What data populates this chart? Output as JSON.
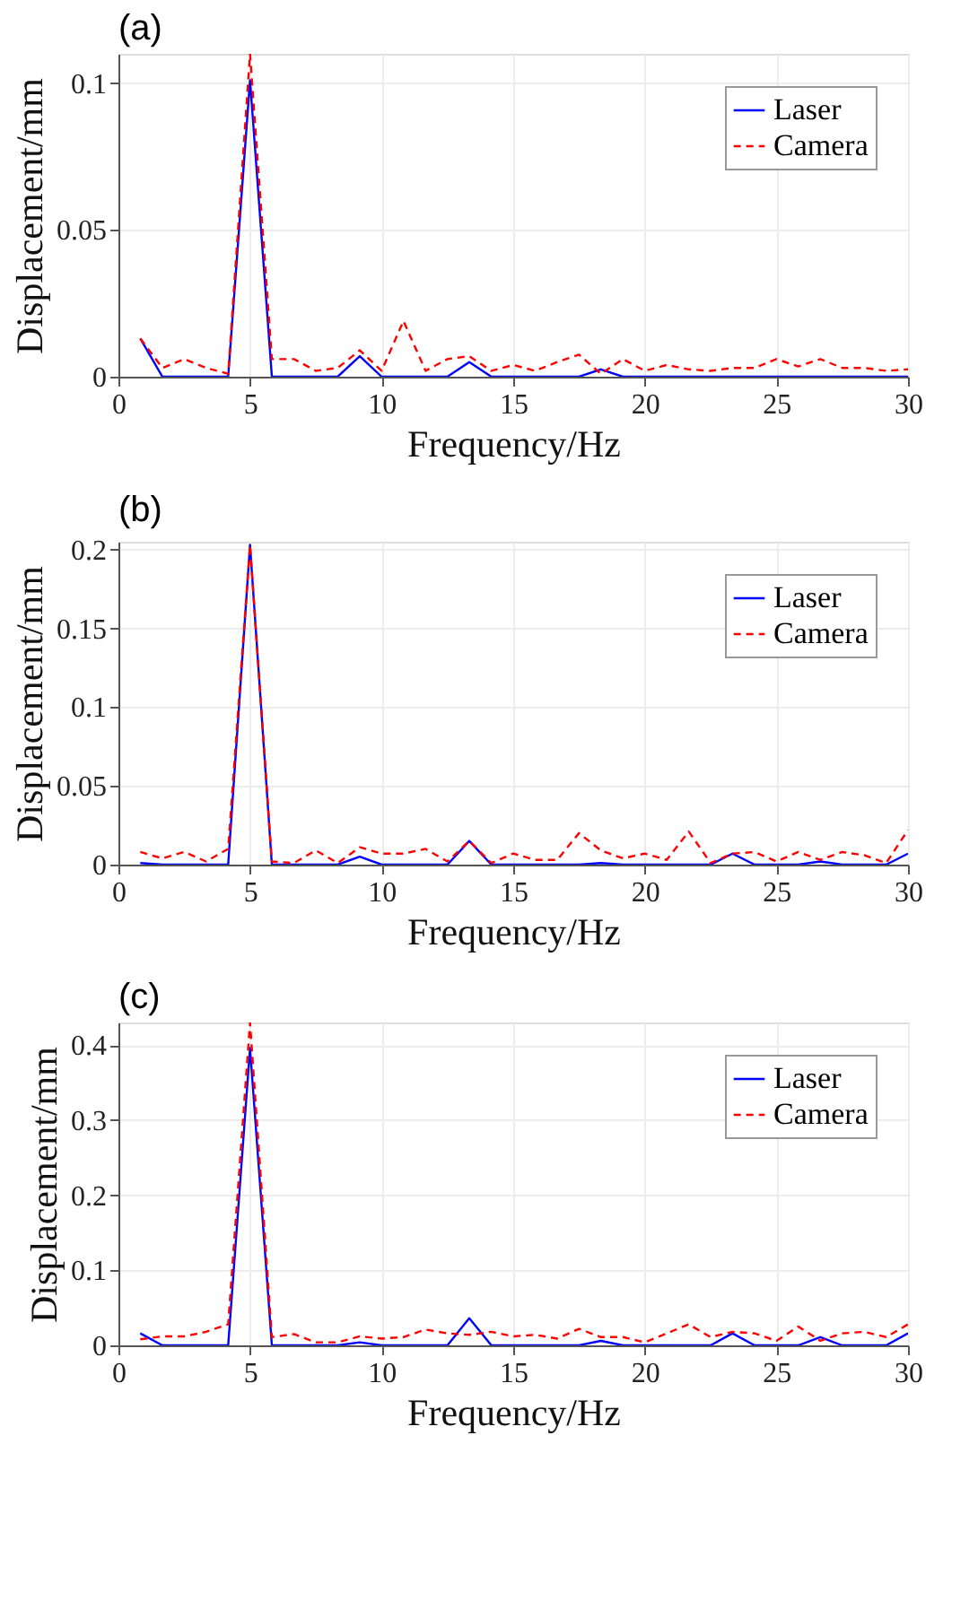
{
  "chart_data": [
    {
      "type": "line",
      "title": "(a)",
      "xlabel": "Frequency/Hz",
      "ylabel": "Displacement/mm",
      "x": [
        0.83,
        1.67,
        2.5,
        3.33,
        4.17,
        5,
        5.83,
        6.67,
        7.5,
        8.33,
        9.17,
        10,
        10.83,
        11.67,
        12.5,
        13.33,
        14.17,
        15,
        15.83,
        16.67,
        17.5,
        18.33,
        19.17,
        20,
        20.83,
        21.67,
        22.5,
        23.33,
        24.17,
        25,
        25.83,
        26.67,
        27.5,
        28.33,
        29.17,
        30
      ],
      "xlim": [
        0,
        30
      ],
      "xticks": [
        0,
        5,
        10,
        15,
        20,
        25,
        30
      ],
      "ylim": [
        0,
        0.11
      ],
      "yticks": [
        0,
        0.05,
        0.1
      ],
      "grid": true,
      "legend": "top right",
      "series": [
        {
          "name": "Laser",
          "color": "#0000ff",
          "line_style": "solid",
          "values": [
            0.013,
            0,
            0,
            0,
            0,
            0.101,
            0,
            0,
            0,
            0,
            0.007,
            0,
            0,
            0,
            0,
            0.005,
            0,
            0,
            0,
            0,
            0,
            0.0025,
            0,
            0,
            0,
            0,
            0,
            0,
            0,
            0,
            0,
            0,
            0,
            0,
            0,
            0
          ]
        },
        {
          "name": "Camera",
          "color": "#ff0000",
          "line_style": "dashed",
          "values": [
            0.013,
            0.003,
            0.006,
            0.003,
            0.001,
            0.11,
            0.006,
            0.006,
            0.002,
            0.003,
            0.009,
            0.002,
            0.019,
            0.002,
            0.006,
            0.007,
            0.002,
            0.004,
            0.002,
            0.005,
            0.0075,
            0.001,
            0.006,
            0.002,
            0.004,
            0.0025,
            0.002,
            0.003,
            0.003,
            0.006,
            0.0035,
            0.006,
            0.003,
            0.003,
            0.002,
            0.0025
          ]
        }
      ]
    },
    {
      "type": "line",
      "title": "(b)",
      "xlabel": "Frequency/Hz",
      "ylabel": "Displacement/mm",
      "x": [
        0.83,
        1.67,
        2.5,
        3.33,
        4.17,
        5,
        5.83,
        6.67,
        7.5,
        8.33,
        9.17,
        10,
        10.83,
        11.67,
        12.5,
        13.33,
        14.17,
        15,
        15.83,
        16.67,
        17.5,
        18.33,
        19.17,
        20,
        20.83,
        21.67,
        22.5,
        23.33,
        24.17,
        25,
        25.83,
        26.67,
        27.5,
        28.33,
        29.17,
        30
      ],
      "xlim": [
        0,
        30
      ],
      "xticks": [
        0,
        5,
        10,
        15,
        20,
        25,
        30
      ],
      "ylim": [
        0,
        0.205
      ],
      "yticks": [
        0,
        0.05,
        0.1,
        0.15,
        0.2
      ],
      "grid": true,
      "legend": "top right",
      "series": [
        {
          "name": "Laser",
          "color": "#0000ff",
          "line_style": "solid",
          "values": [
            0.001,
            0,
            0,
            0,
            0,
            0.203,
            0,
            0,
            0,
            0,
            0.005,
            0,
            0,
            0,
            0,
            0.015,
            0,
            0,
            0,
            0,
            0,
            0.001,
            0,
            0,
            0,
            0,
            0,
            0.007,
            0,
            0,
            0,
            0.002,
            0,
            0,
            0,
            0.007
          ]
        },
        {
          "name": "Camera",
          "color": "#ff0000",
          "line_style": "dashed",
          "values": [
            0.008,
            0.004,
            0.008,
            0.002,
            0.01,
            0.203,
            0.002,
            0.001,
            0.009,
            0.001,
            0.011,
            0.007,
            0.007,
            0.01,
            0.002,
            0.015,
            0.001,
            0.007,
            0.003,
            0.003,
            0.02,
            0.009,
            0.004,
            0.007,
            0.003,
            0.021,
            0.001,
            0.007,
            0.008,
            0.002,
            0.008,
            0.003,
            0.008,
            0.006,
            0.001,
            0.022
          ]
        }
      ]
    },
    {
      "type": "line",
      "title": "(c)",
      "xlabel": "Frequency/Hz",
      "ylabel": "Displacement/mm",
      "x": [
        0.83,
        1.67,
        2.5,
        3.33,
        4.17,
        5,
        5.83,
        6.67,
        7.5,
        8.33,
        9.17,
        10,
        10.83,
        11.67,
        12.5,
        13.33,
        14.17,
        15,
        15.83,
        16.67,
        17.5,
        18.33,
        19.17,
        20,
        20.83,
        21.67,
        22.5,
        23.33,
        24.17,
        25,
        25.83,
        26.67,
        27.5,
        28.33,
        29.17,
        30
      ],
      "xlim": [
        0,
        30
      ],
      "xticks": [
        0,
        5,
        10,
        15,
        20,
        25,
        30
      ],
      "ylim": [
        0,
        0.43
      ],
      "yticks": [
        0,
        0.1,
        0.2,
        0.3,
        0.4
      ],
      "grid": true,
      "legend": "top right",
      "series": [
        {
          "name": "Laser",
          "color": "#0000ff",
          "line_style": "solid",
          "values": [
            0.016,
            0,
            0,
            0,
            0,
            0.396,
            0,
            0,
            0,
            0,
            0.004,
            0,
            0,
            0,
            0,
            0.036,
            0,
            0,
            0,
            0,
            0,
            0.006,
            0,
            0,
            0,
            0,
            0,
            0.016,
            0,
            0,
            0,
            0.011,
            0,
            0,
            0,
            0.016
          ]
        },
        {
          "name": "Camera",
          "color": "#ff0000",
          "line_style": "dashed",
          "values": [
            0.008,
            0.012,
            0.012,
            0.018,
            0.028,
            0.43,
            0.011,
            0.015,
            0.004,
            0.004,
            0.012,
            0.009,
            0.011,
            0.021,
            0.016,
            0.014,
            0.018,
            0.012,
            0.014,
            0.009,
            0.022,
            0.011,
            0.011,
            0.004,
            0.016,
            0.028,
            0.011,
            0.018,
            0.016,
            0.006,
            0.025,
            0.006,
            0.016,
            0.018,
            0.011,
            0.028
          ]
        }
      ]
    }
  ]
}
